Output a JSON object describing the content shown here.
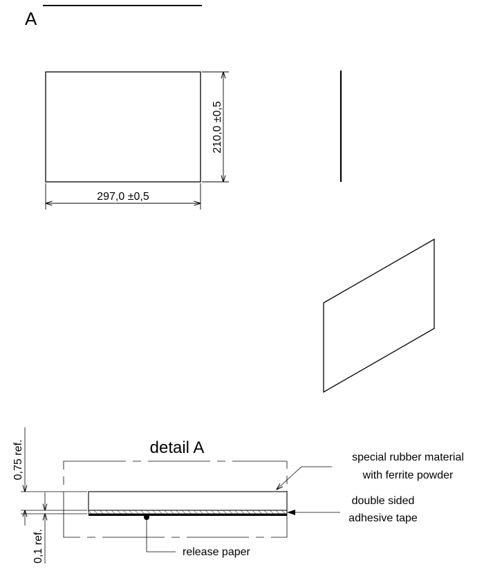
{
  "section_marker": "A",
  "front_view": {
    "width_dim": "297,0 ±0,5",
    "height_dim": "210,0 ±0,5"
  },
  "detail": {
    "title": "detail A",
    "thickness_dim": "0,75 ref.",
    "tape_dim": "0,1 ref.",
    "callouts": {
      "rubber_line1": "special rubber material",
      "rubber_line2": "with ferrite powder",
      "tape_line1": "double sided",
      "tape_line2": "adhesive tape",
      "release": "release paper"
    }
  }
}
